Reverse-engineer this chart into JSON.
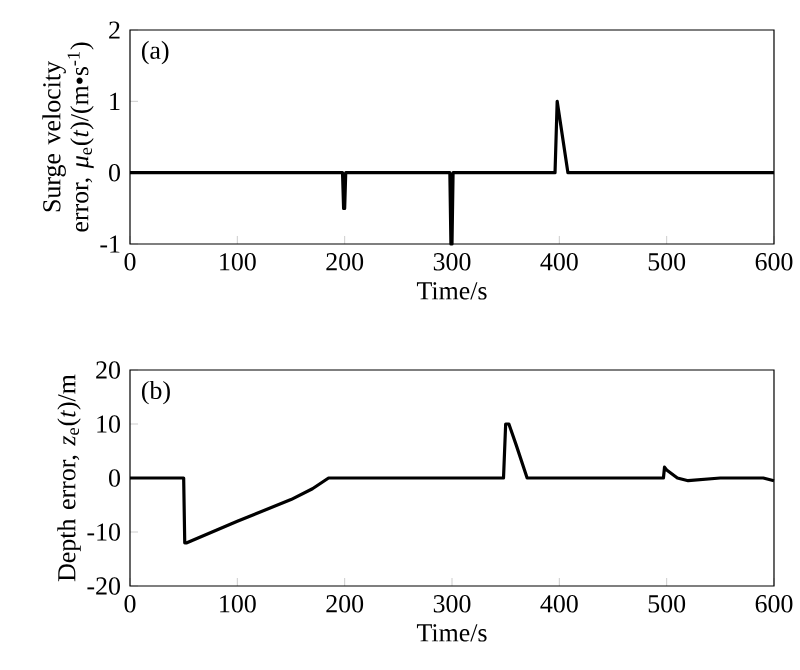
{
  "chart_data": [
    {
      "type": "line",
      "xlabel": "Time/s",
      "ylabel": "Surge velocity error, *μ*$_{e}$(*t*)/(m•s$^{-1}$)",
      "annotations": [
        "(a)"
      ],
      "x": [
        0,
        198,
        199,
        200,
        201,
        298,
        299,
        300,
        301,
        396,
        398,
        408,
        600
      ],
      "series": [
        {
          "color": "#000000",
          "values": [
            0,
            0,
            -0.5,
            -0.5,
            0,
            0,
            -1,
            -1,
            0,
            0,
            1,
            0,
            0
          ]
        }
      ],
      "xlim": [
        0,
        600
      ],
      "ylim": [
        -1,
        2
      ],
      "xticks": [
        0,
        100,
        200,
        300,
        400,
        500,
        600
      ],
      "yticks": [
        -1,
        0,
        1,
        2
      ]
    },
    {
      "type": "line",
      "xlabel": "Time/s",
      "ylabel": "Depth error, *z*$_{e}$(*t*)/m",
      "annotations": [
        "(b)"
      ],
      "x": [
        0,
        50,
        51,
        53,
        100,
        150,
        170,
        185,
        200,
        348,
        350,
        353,
        360,
        370,
        400,
        497,
        498,
        500,
        510,
        520,
        550,
        590,
        600
      ],
      "series": [
        {
          "color": "#000000",
          "values": [
            0,
            0,
            -12,
            -12,
            -8,
            -4,
            -2,
            0,
            0,
            0,
            10,
            10,
            6,
            0,
            0,
            0,
            2,
            1.5,
            0,
            -0.5,
            0,
            0,
            -0.5
          ]
        }
      ],
      "xlim": [
        0,
        600
      ],
      "ylim": [
        -20,
        20
      ],
      "xticks": [
        0,
        100,
        200,
        300,
        400,
        500,
        600
      ],
      "yticks": [
        -20,
        -10,
        0,
        10,
        20
      ]
    }
  ]
}
